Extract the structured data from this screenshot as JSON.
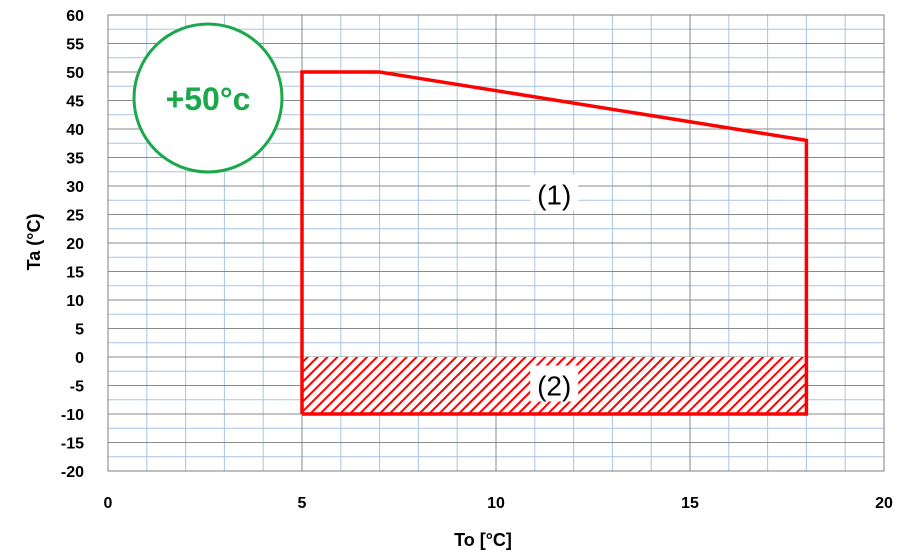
{
  "chart_data": {
    "type": "line",
    "xlabel": "To [°C]",
    "ylabel": "Ta (°C)",
    "xlim": [
      0,
      20
    ],
    "ylim": [
      -20,
      60
    ],
    "x_ticks": [
      0,
      5,
      10,
      15,
      20
    ],
    "y_ticks": [
      60,
      55,
      50,
      45,
      40,
      35,
      30,
      25,
      20,
      15,
      10,
      5,
      0,
      -5,
      -10,
      -15,
      -20
    ],
    "grid": true,
    "minor_x_step": 1,
    "minor_y_step": 2.5,
    "series": [
      {
        "color": "#ff0000",
        "points": [
          [
            5,
            -10
          ],
          [
            5,
            50
          ],
          [
            7,
            50
          ],
          [
            18,
            38
          ],
          [
            18,
            -10
          ],
          [
            5,
            -10
          ]
        ]
      }
    ],
    "hatched_region": {
      "x": [
        5,
        18
      ],
      "y": [
        -10,
        0
      ],
      "color": "#ff0000"
    },
    "annotations": [
      {
        "text": "(1)",
        "x": 11.5,
        "y": 28.5
      },
      {
        "text": "(2)",
        "x": 11.5,
        "y": -5
      }
    ],
    "badge": {
      "text": "+50°c",
      "color": "#1aa84b"
    }
  }
}
